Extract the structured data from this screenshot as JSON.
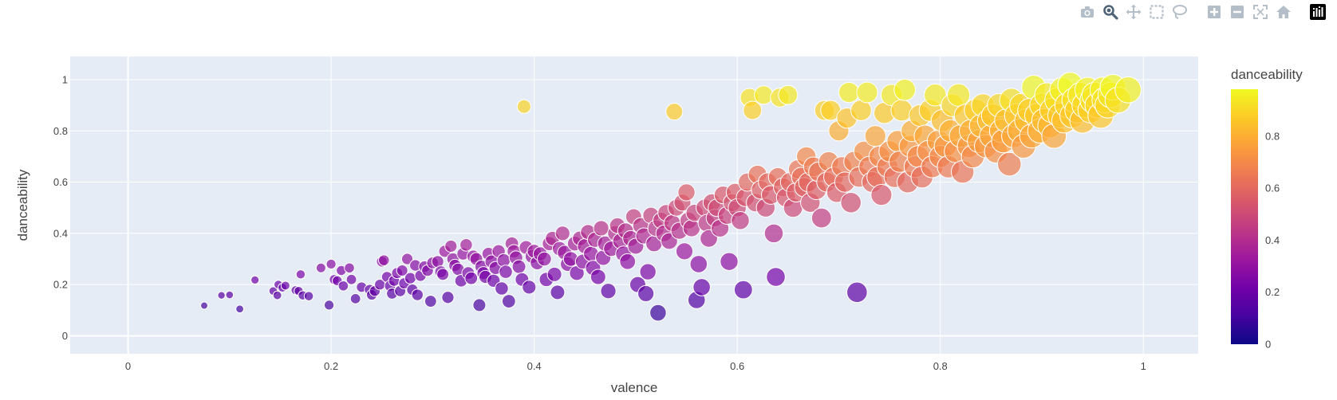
{
  "toolbar": {
    "buttons": [
      {
        "name": "camera-icon",
        "title": "Download plot as a png"
      },
      {
        "name": "zoom-icon",
        "title": "Zoom"
      },
      {
        "name": "pan-icon",
        "title": "Pan"
      },
      {
        "name": "box-select-icon",
        "title": "Box Select"
      },
      {
        "name": "lasso-select-icon",
        "title": "Lasso Select"
      },
      {
        "name": "zoom-in-icon",
        "title": "Zoom in"
      },
      {
        "name": "zoom-out-icon",
        "title": "Zoom out"
      },
      {
        "name": "autoscale-icon",
        "title": "Autoscale"
      },
      {
        "name": "reset-axes-icon",
        "title": "Reset axes"
      },
      {
        "name": "plotly-logo-icon",
        "title": "Produced with Plotly"
      }
    ],
    "active": "zoom-icon",
    "icon_color": "#b4bec8",
    "active_color": "#506478"
  },
  "chart_data": {
    "type": "scatter",
    "title": "",
    "xlabel": "valence",
    "ylabel": "danceability",
    "xlim": [
      -0.057,
      1.054
    ],
    "ylim": [
      -0.07,
      1.09
    ],
    "x_ticks": [
      0,
      0.2,
      0.4,
      0.6,
      0.8,
      1
    ],
    "x_tick_labels": [
      "0",
      "0.2",
      "0.4",
      "0.6",
      "0.8",
      "1"
    ],
    "y_ticks": [
      0,
      0.2,
      0.4,
      0.6,
      0.8,
      1
    ],
    "y_tick_labels": [
      "0",
      "0.2",
      "0.4",
      "0.6",
      "0.8",
      "1"
    ],
    "grid": true,
    "plot_bg": "#e5ecf6",
    "marker_opacity": 0.7,
    "marker_line_color": "#ffffff",
    "color_by": "danceability",
    "size_by": "valence",
    "colorbar": {
      "title": "danceability",
      "range": [
        0,
        0.98
      ],
      "ticks": [
        0,
        0.2,
        0.4,
        0.6,
        0.8
      ],
      "tick_labels": [
        "0",
        "0.2",
        "0.4",
        "0.6",
        "0.8"
      ],
      "colorscale": [
        "#0d0887",
        "#46039f",
        "#7201a8",
        "#9c179e",
        "#bd3786",
        "#d8576b",
        "#ed7953",
        "#fb9f3a",
        "#fdca26",
        "#f0f921"
      ]
    },
    "points": [
      [
        0.075,
        0.118
      ],
      [
        0.092,
        0.158
      ],
      [
        0.1,
        0.16
      ],
      [
        0.11,
        0.105
      ],
      [
        0.125,
        0.218
      ],
      [
        0.143,
        0.175
      ],
      [
        0.147,
        0.158
      ],
      [
        0.148,
        0.2
      ],
      [
        0.152,
        0.188
      ],
      [
        0.155,
        0.196
      ],
      [
        0.165,
        0.178
      ],
      [
        0.168,
        0.175
      ],
      [
        0.17,
        0.24
      ],
      [
        0.172,
        0.158
      ],
      [
        0.178,
        0.155
      ],
      [
        0.19,
        0.265
      ],
      [
        0.198,
        0.12
      ],
      [
        0.2,
        0.28
      ],
      [
        0.203,
        0.22
      ],
      [
        0.206,
        0.215
      ],
      [
        0.21,
        0.255
      ],
      [
        0.212,
        0.195
      ],
      [
        0.218,
        0.265
      ],
      [
        0.22,
        0.22
      ],
      [
        0.224,
        0.145
      ],
      [
        0.23,
        0.19
      ],
      [
        0.238,
        0.18
      ],
      [
        0.24,
        0.16
      ],
      [
        0.243,
        0.175
      ],
      [
        0.248,
        0.2
      ],
      [
        0.25,
        0.29
      ],
      [
        0.252,
        0.295
      ],
      [
        0.255,
        0.23
      ],
      [
        0.258,
        0.195
      ],
      [
        0.26,
        0.165
      ],
      [
        0.262,
        0.215
      ],
      [
        0.265,
        0.245
      ],
      [
        0.268,
        0.175
      ],
      [
        0.27,
        0.255
      ],
      [
        0.272,
        0.205
      ],
      [
        0.275,
        0.3
      ],
      [
        0.278,
        0.225
      ],
      [
        0.28,
        0.18
      ],
      [
        0.283,
        0.275
      ],
      [
        0.285,
        0.16
      ],
      [
        0.288,
        0.235
      ],
      [
        0.292,
        0.27
      ],
      [
        0.295,
        0.255
      ],
      [
        0.298,
        0.135
      ],
      [
        0.3,
        0.285
      ],
      [
        0.305,
        0.29
      ],
      [
        0.308,
        0.25
      ],
      [
        0.31,
        0.24
      ],
      [
        0.312,
        0.33
      ],
      [
        0.315,
        0.15
      ],
      [
        0.318,
        0.35
      ],
      [
        0.32,
        0.3
      ],
      [
        0.322,
        0.275
      ],
      [
        0.325,
        0.26
      ],
      [
        0.328,
        0.215
      ],
      [
        0.33,
        0.32
      ],
      [
        0.333,
        0.355
      ],
      [
        0.335,
        0.245
      ],
      [
        0.338,
        0.225
      ],
      [
        0.34,
        0.31
      ],
      [
        0.343,
        0.3
      ],
      [
        0.346,
        0.12
      ],
      [
        0.348,
        0.27
      ],
      [
        0.35,
        0.245
      ],
      [
        0.352,
        0.23
      ],
      [
        0.355,
        0.32
      ],
      [
        0.358,
        0.29
      ],
      [
        0.36,
        0.215
      ],
      [
        0.362,
        0.265
      ],
      [
        0.365,
        0.33
      ],
      [
        0.368,
        0.185
      ],
      [
        0.37,
        0.295
      ],
      [
        0.372,
        0.25
      ],
      [
        0.375,
        0.135
      ],
      [
        0.378,
        0.36
      ],
      [
        0.38,
        0.33
      ],
      [
        0.382,
        0.305
      ],
      [
        0.385,
        0.27
      ],
      [
        0.388,
        0.22
      ],
      [
        0.39,
        0.895
      ],
      [
        0.392,
        0.345
      ],
      [
        0.395,
        0.19
      ],
      [
        0.398,
        0.31
      ],
      [
        0.4,
        0.33
      ],
      [
        0.403,
        0.285
      ],
      [
        0.406,
        0.32
      ],
      [
        0.41,
        0.3
      ],
      [
        0.412,
        0.22
      ],
      [
        0.415,
        0.36
      ],
      [
        0.418,
        0.38
      ],
      [
        0.42,
        0.24
      ],
      [
        0.423,
        0.17
      ],
      [
        0.425,
        0.34
      ],
      [
        0.428,
        0.4
      ],
      [
        0.43,
        0.325
      ],
      [
        0.433,
        0.28
      ],
      [
        0.436,
        0.3
      ],
      [
        0.44,
        0.36
      ],
      [
        0.442,
        0.245
      ],
      [
        0.445,
        0.38
      ],
      [
        0.448,
        0.29
      ],
      [
        0.45,
        0.35
      ],
      [
        0.453,
        0.405
      ],
      [
        0.456,
        0.32
      ],
      [
        0.458,
        0.265
      ],
      [
        0.46,
        0.375
      ],
      [
        0.463,
        0.23
      ],
      [
        0.466,
        0.42
      ],
      [
        0.468,
        0.305
      ],
      [
        0.47,
        0.36
      ],
      [
        0.473,
        0.175
      ],
      [
        0.476,
        0.34
      ],
      [
        0.48,
        0.4
      ],
      [
        0.482,
        0.43
      ],
      [
        0.485,
        0.37
      ],
      [
        0.488,
        0.32
      ],
      [
        0.49,
        0.41
      ],
      [
        0.492,
        0.29
      ],
      [
        0.495,
        0.38
      ],
      [
        0.498,
        0.465
      ],
      [
        0.5,
        0.35
      ],
      [
        0.502,
        0.2
      ],
      [
        0.505,
        0.43
      ],
      [
        0.508,
        0.39
      ],
      [
        0.51,
        0.165
      ],
      [
        0.512,
        0.25
      ],
      [
        0.515,
        0.47
      ],
      [
        0.518,
        0.36
      ],
      [
        0.52,
        0.42
      ],
      [
        0.522,
        0.09
      ],
      [
        0.525,
        0.45
      ],
      [
        0.528,
        0.4
      ],
      [
        0.53,
        0.48
      ],
      [
        0.533,
        0.37
      ],
      [
        0.536,
        0.44
      ],
      [
        0.538,
        0.875
      ],
      [
        0.54,
        0.5
      ],
      [
        0.543,
        0.41
      ],
      [
        0.546,
        0.52
      ],
      [
        0.548,
        0.33
      ],
      [
        0.55,
        0.56
      ],
      [
        0.552,
        0.45
      ],
      [
        0.555,
        0.42
      ],
      [
        0.558,
        0.48
      ],
      [
        0.56,
        0.14
      ],
      [
        0.562,
        0.28
      ],
      [
        0.565,
        0.19
      ],
      [
        0.568,
        0.5
      ],
      [
        0.57,
        0.44
      ],
      [
        0.572,
        0.38
      ],
      [
        0.575,
        0.52
      ],
      [
        0.578,
        0.46
      ],
      [
        0.58,
        0.5
      ],
      [
        0.583,
        0.42
      ],
      [
        0.586,
        0.55
      ],
      [
        0.59,
        0.47
      ],
      [
        0.592,
        0.29
      ],
      [
        0.595,
        0.52
      ],
      [
        0.598,
        0.56
      ],
      [
        0.6,
        0.5
      ],
      [
        0.603,
        0.45
      ],
      [
        0.606,
        0.18
      ],
      [
        0.608,
        0.54
      ],
      [
        0.61,
        0.6
      ],
      [
        0.612,
        0.93
      ],
      [
        0.615,
        0.88
      ],
      [
        0.618,
        0.52
      ],
      [
        0.62,
        0.63
      ],
      [
        0.623,
        0.57
      ],
      [
        0.626,
        0.94
      ],
      [
        0.628,
        0.5
      ],
      [
        0.63,
        0.6
      ],
      [
        0.633,
        0.55
      ],
      [
        0.636,
        0.4
      ],
      [
        0.638,
        0.23
      ],
      [
        0.64,
        0.62
      ],
      [
        0.642,
        0.93
      ],
      [
        0.645,
        0.58
      ],
      [
        0.648,
        0.54
      ],
      [
        0.65,
        0.94
      ],
      [
        0.652,
        0.6
      ],
      [
        0.655,
        0.5
      ],
      [
        0.658,
        0.56
      ],
      [
        0.66,
        0.65
      ],
      [
        0.663,
        0.62
      ],
      [
        0.666,
        0.58
      ],
      [
        0.668,
        0.7
      ],
      [
        0.67,
        0.6
      ],
      [
        0.672,
        0.52
      ],
      [
        0.675,
        0.66
      ],
      [
        0.678,
        0.57
      ],
      [
        0.68,
        0.64
      ],
      [
        0.683,
        0.46
      ],
      [
        0.686,
        0.88
      ],
      [
        0.688,
        0.6
      ],
      [
        0.69,
        0.68
      ],
      [
        0.692,
        0.88
      ],
      [
        0.695,
        0.62
      ],
      [
        0.698,
        0.56
      ],
      [
        0.7,
        0.8
      ],
      [
        0.703,
        0.66
      ],
      [
        0.706,
        0.6
      ],
      [
        0.708,
        0.85
      ],
      [
        0.71,
        0.95
      ],
      [
        0.712,
        0.52
      ],
      [
        0.715,
        0.68
      ],
      [
        0.718,
        0.17
      ],
      [
        0.72,
        0.62
      ],
      [
        0.722,
        0.88
      ],
      [
        0.725,
        0.72
      ],
      [
        0.728,
        0.95
      ],
      [
        0.73,
        0.66
      ],
      [
        0.733,
        0.6
      ],
      [
        0.736,
        0.78
      ],
      [
        0.738,
        0.62
      ],
      [
        0.74,
        0.7
      ],
      [
        0.742,
        0.55
      ],
      [
        0.745,
        0.87
      ],
      [
        0.748,
        0.66
      ],
      [
        0.75,
        0.72
      ],
      [
        0.752,
        0.94
      ],
      [
        0.755,
        0.62
      ],
      [
        0.758,
        0.76
      ],
      [
        0.76,
        0.68
      ],
      [
        0.762,
        0.88
      ],
      [
        0.765,
        0.96
      ],
      [
        0.768,
        0.6
      ],
      [
        0.77,
        0.74
      ],
      [
        0.772,
        0.8
      ],
      [
        0.775,
        0.66
      ],
      [
        0.778,
        0.7
      ],
      [
        0.78,
        0.86
      ],
      [
        0.782,
        0.62
      ],
      [
        0.785,
        0.78
      ],
      [
        0.788,
        0.72
      ],
      [
        0.79,
        0.88
      ],
      [
        0.792,
        0.66
      ],
      [
        0.795,
        0.94
      ],
      [
        0.798,
        0.76
      ],
      [
        0.8,
        0.7
      ],
      [
        0.802,
        0.84
      ],
      [
        0.805,
        0.74
      ],
      [
        0.808,
        0.66
      ],
      [
        0.81,
        0.8
      ],
      [
        0.812,
        0.9
      ],
      [
        0.815,
        0.72
      ],
      [
        0.818,
        0.94
      ],
      [
        0.82,
        0.78
      ],
      [
        0.822,
        0.64
      ],
      [
        0.825,
        0.86
      ],
      [
        0.828,
        0.74
      ],
      [
        0.83,
        0.8
      ],
      [
        0.832,
        0.7
      ],
      [
        0.835,
        0.88
      ],
      [
        0.838,
        0.76
      ],
      [
        0.84,
        0.82
      ],
      [
        0.842,
        0.9
      ],
      [
        0.845,
        0.74
      ],
      [
        0.848,
        0.84
      ],
      [
        0.85,
        0.78
      ],
      [
        0.852,
        0.86
      ],
      [
        0.855,
        0.72
      ],
      [
        0.858,
        0.9
      ],
      [
        0.86,
        0.8
      ],
      [
        0.862,
        0.76
      ],
      [
        0.865,
        0.84
      ],
      [
        0.868,
        0.67
      ],
      [
        0.87,
        0.92
      ],
      [
        0.872,
        0.78
      ],
      [
        0.875,
        0.86
      ],
      [
        0.878,
        0.8
      ],
      [
        0.88,
        0.9
      ],
      [
        0.882,
        0.74
      ],
      [
        0.885,
        0.84
      ],
      [
        0.888,
        0.88
      ],
      [
        0.89,
        0.78
      ],
      [
        0.892,
        0.97
      ],
      [
        0.895,
        0.86
      ],
      [
        0.898,
        0.8
      ],
      [
        0.9,
        0.9
      ],
      [
        0.902,
        0.84
      ],
      [
        0.905,
        0.94
      ],
      [
        0.908,
        0.82
      ],
      [
        0.91,
        0.88
      ],
      [
        0.912,
        0.78
      ],
      [
        0.915,
        0.92
      ],
      [
        0.918,
        0.86
      ],
      [
        0.92,
        0.96
      ],
      [
        0.922,
        0.84
      ],
      [
        0.925,
        0.9
      ],
      [
        0.928,
        0.98
      ],
      [
        0.93,
        0.86
      ],
      [
        0.932,
        0.92
      ],
      [
        0.935,
        0.88
      ],
      [
        0.938,
        0.94
      ],
      [
        0.94,
        0.84
      ],
      [
        0.942,
        0.9
      ],
      [
        0.945,
        0.96
      ],
      [
        0.948,
        0.88
      ],
      [
        0.95,
        0.92
      ],
      [
        0.952,
        0.94
      ],
      [
        0.955,
        0.9
      ],
      [
        0.958,
        0.86
      ],
      [
        0.96,
        0.96
      ],
      [
        0.962,
        0.92
      ],
      [
        0.965,
        0.9
      ],
      [
        0.968,
        0.94
      ],
      [
        0.97,
        0.97
      ],
      [
        0.975,
        0.92
      ],
      [
        0.985,
        0.96
      ]
    ]
  }
}
